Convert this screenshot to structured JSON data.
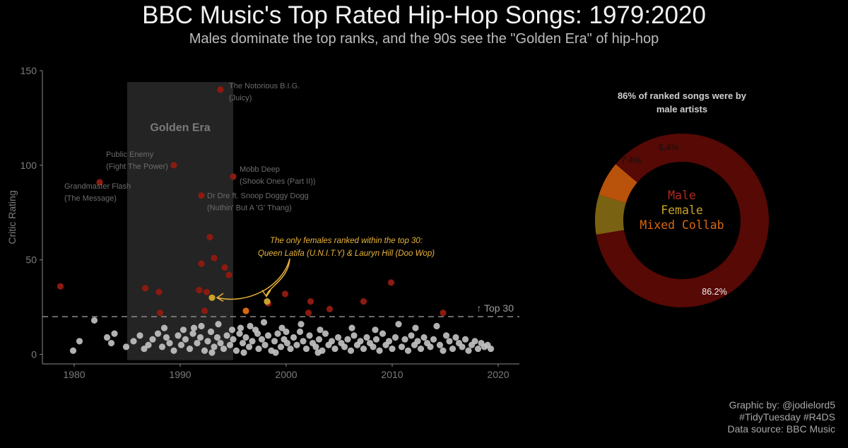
{
  "title": "BBC Music's Top Rated Hip-Hop Songs: 1979:2020",
  "subtitle": "Males dominate the top ranks, and the 90s see the \"Golden Era\" of hip-hop",
  "credits": [
    "Graphic by: @jodielord5",
    "#TidyTuesday #R4DS",
    "Data source: BBC Music"
  ],
  "colors": {
    "background": "#000000",
    "male": "#8b1a10",
    "female": "#c9a227",
    "mixed": "#d9680d",
    "unranked": "#c4c4c4",
    "golden_era_band": "#2a2a2a",
    "donut_male": "#560905",
    "donut_female": "#7a6213",
    "donut_mixed": "#b9520a",
    "annotation": "#e8b33a"
  },
  "chart_data": [
    {
      "type": "scatter",
      "ylabel": "Critic Rating",
      "xlim": [
        1977,
        2022
      ],
      "ylim": [
        -5,
        150
      ],
      "x_ticks": [
        1980,
        1990,
        2000,
        2010,
        2020
      ],
      "y_ticks": [
        0,
        50,
        100,
        150
      ],
      "grid": false,
      "shaded_region": {
        "label": "Golden Era",
        "x": [
          1985,
          1995
        ],
        "y": [
          0,
          144
        ]
      },
      "threshold": {
        "y": 20,
        "label": "↑ Top 30"
      },
      "annotation": {
        "lines": [
          "The only females ranked within the top 30:",
          "Queen Latifa (U.N.I.T.Y) & Lauryn Hill (Doo Wop)"
        ],
        "targets": [
          [
            1993,
            30
          ],
          [
            1998,
            28
          ]
        ]
      },
      "labels": [
        {
          "x": 1993.8,
          "y": 140,
          "lines": [
            "The Notorious B.I.G.",
            "(Juicy)"
          ]
        },
        {
          "x": 1982.4,
          "y": 91,
          "lines": [
            "Grandmaster Flash",
            "(The Message)"
          ]
        },
        {
          "x": 1989.4,
          "y": 100,
          "lines": [
            "Public Enemy",
            "(Fight The Power)"
          ]
        },
        {
          "x": 1995,
          "y": 94,
          "lines": [
            "Mobb Deep",
            "(Shook Ones (Part II))"
          ]
        },
        {
          "x": 1992,
          "y": 84,
          "lines": [
            "Dr Dre ft. Snoop Doggy Dogg",
            "(Nuthin' But A 'G' Thang)"
          ]
        }
      ],
      "series": [
        {
          "name": "Male",
          "points": [
            [
              1993.8,
              140
            ],
            [
              1982.4,
              91
            ],
            [
              1989.4,
              100
            ],
            [
              1995,
              94
            ],
            [
              1992,
              84
            ],
            [
              1978.7,
              36
            ],
            [
              1986.7,
              35
            ],
            [
              1988,
              33
            ],
            [
              1992.8,
              62
            ],
            [
              1993.2,
              51
            ],
            [
              1992.0,
              48
            ],
            [
              1994.2,
              46
            ],
            [
              1994.6,
              42
            ],
            [
              1991.8,
              34
            ],
            [
              1992.5,
              33
            ],
            [
              1992.3,
              23
            ],
            [
              1988.1,
              22
            ],
            [
              1999.9,
              32
            ],
            [
              2002.3,
              28
            ],
            [
              2004.1,
              24
            ],
            [
              2007.3,
              28
            ],
            [
              2009.9,
              38
            ],
            [
              2002.1,
              22
            ],
            [
              2014.8,
              22
            ],
            [
              1998.3,
              27
            ]
          ]
        },
        {
          "name": "Female",
          "points": [
            [
              1993,
              30
            ],
            [
              1998.2,
              28
            ]
          ]
        },
        {
          "name": "Mixed Collab",
          "points": [
            [
              1996.2,
              23
            ]
          ]
        },
        {
          "name": "Unranked",
          "points": [
            [
              1979.9,
              2
            ],
            [
              1980.5,
              7
            ],
            [
              1981.9,
              18
            ],
            [
              1983.1,
              9
            ],
            [
              1983.5,
              6
            ],
            [
              1983.8,
              11
            ],
            [
              1984.9,
              4
            ],
            [
              1985.6,
              7
            ],
            [
              1986.2,
              10
            ],
            [
              1986.6,
              3
            ],
            [
              1987.0,
              5
            ],
            [
              1987.4,
              8
            ],
            [
              1987.9,
              11
            ],
            [
              1988.3,
              4
            ],
            [
              1988.7,
              9
            ],
            [
              1989.0,
              6
            ],
            [
              1989.4,
              2
            ],
            [
              1989.8,
              10
            ],
            [
              1990.1,
              5
            ],
            [
              1990.5,
              8
            ],
            [
              1990.9,
              3
            ],
            [
              1991.2,
              11
            ],
            [
              1991.6,
              6
            ],
            [
              1991.9,
              9
            ],
            [
              1992.3,
              2
            ],
            [
              1992.6,
              7
            ],
            [
              1992.9,
              12
            ],
            [
              1993.2,
              4
            ],
            [
              1993.5,
              9
            ],
            [
              1993.8,
              6
            ],
            [
              1994.1,
              3
            ],
            [
              1994.4,
              10
            ],
            [
              1994.7,
              5
            ],
            [
              1995.0,
              8
            ],
            [
              1995.3,
              2
            ],
            [
              1995.6,
              11
            ],
            [
              1995.9,
              6
            ],
            [
              1996.2,
              9
            ],
            [
              1996.5,
              4
            ],
            [
              1996.8,
              7
            ],
            [
              1997.1,
              13
            ],
            [
              1997.4,
              3
            ],
            [
              1997.7,
              8
            ],
            [
              1998.0,
              5
            ],
            [
              1998.3,
              10
            ],
            [
              1998.6,
              2
            ],
            [
              1998.9,
              7
            ],
            [
              1999.2,
              11
            ],
            [
              1999.5,
              4
            ],
            [
              1999.8,
              8
            ],
            [
              2000.1,
              6
            ],
            [
              2000.4,
              3
            ],
            [
              2000.7,
              9
            ],
            [
              2001.0,
              5
            ],
            [
              2001.3,
              12
            ],
            [
              2001.6,
              7
            ],
            [
              2001.9,
              3
            ],
            [
              2002.2,
              10
            ],
            [
              2002.5,
              6
            ],
            [
              2002.8,
              4
            ],
            [
              2003.1,
              8
            ],
            [
              2003.4,
              2
            ],
            [
              2003.7,
              11
            ],
            [
              2004.0,
              5
            ],
            [
              2004.3,
              7
            ],
            [
              2004.6,
              3
            ],
            [
              2004.9,
              9
            ],
            [
              2005.2,
              6
            ],
            [
              2005.5,
              4
            ],
            [
              2005.8,
              8
            ],
            [
              2006.1,
              2
            ],
            [
              2006.4,
              10
            ],
            [
              2006.7,
              5
            ],
            [
              2007.0,
              7
            ],
            [
              2007.3,
              3
            ],
            [
              2007.6,
              9
            ],
            [
              2007.9,
              6
            ],
            [
              2008.2,
              4
            ],
            [
              2008.5,
              8
            ],
            [
              2008.8,
              2
            ],
            [
              2009.1,
              11
            ],
            [
              2009.4,
              5
            ],
            [
              2009.7,
              7
            ],
            [
              2010.0,
              3
            ],
            [
              2010.3,
              9
            ],
            [
              2010.6,
              16
            ],
            [
              2010.9,
              4
            ],
            [
              2011.2,
              8
            ],
            [
              2011.5,
              2
            ],
            [
              2011.8,
              10
            ],
            [
              2012.1,
              5
            ],
            [
              2012.4,
              7
            ],
            [
              2012.7,
              3
            ],
            [
              2013.0,
              9
            ],
            [
              2013.3,
              6
            ],
            [
              2013.6,
              4
            ],
            [
              2013.9,
              8
            ],
            [
              2014.2,
              15
            ],
            [
              2014.5,
              5
            ],
            [
              2014.8,
              2
            ],
            [
              2015.1,
              10
            ],
            [
              2015.4,
              7
            ],
            [
              2015.7,
              3
            ],
            [
              2016.0,
              9
            ],
            [
              2016.3,
              6
            ],
            [
              2016.6,
              4
            ],
            [
              2016.9,
              8
            ],
            [
              2017.2,
              2
            ],
            [
              2017.5,
              5
            ],
            [
              2017.8,
              7
            ],
            [
              2018.1,
              3
            ],
            [
              2018.4,
              6
            ],
            [
              2018.7,
              4
            ],
            [
              2019.0,
              5
            ],
            [
              2019.3,
              3
            ],
            [
              1988.5,
              14
            ],
            [
              1991.3,
              14
            ],
            [
              1993.6,
              16
            ],
            [
              1996.6,
              15
            ],
            [
              1997.9,
              17
            ],
            [
              1999.6,
              14
            ],
            [
              2001.4,
              16
            ],
            [
              2003.2,
              13
            ],
            [
              2006.2,
              14
            ],
            [
              2008.4,
              13
            ],
            [
              2012.2,
              14
            ],
            [
              1995.7,
              14
            ],
            [
              1994.9,
              13
            ],
            [
              1992.0,
              15
            ],
            [
              1990.3,
              13
            ],
            [
              1997.3,
              11
            ],
            [
              2000.0,
              12
            ],
            [
              1993.0,
              1
            ],
            [
              1996.0,
              1
            ],
            [
              1999.0,
              1
            ],
            [
              2003.0,
              1
            ]
          ]
        }
      ]
    },
    {
      "type": "pie",
      "title": "86% of ranked songs were by male artists",
      "title_lines": [
        "86% of ranked songs were by",
        "male artists"
      ],
      "center_labels": [
        "Male",
        "Female",
        "Mixed Collab"
      ],
      "slices": [
        {
          "name": "Male",
          "value": 86.2,
          "label": "86.2%"
        },
        {
          "name": "Female",
          "value": 7.4,
          "label": "7.4%"
        },
        {
          "name": "Mixed Collab",
          "value": 6.4,
          "label": "6.4%"
        }
      ]
    }
  ]
}
